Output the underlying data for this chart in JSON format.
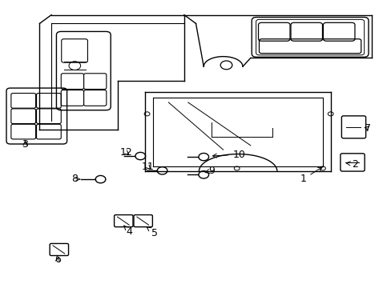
{
  "background_color": "#ffffff",
  "line_color": "#000000",
  "label_color": "#000000",
  "label_fontsize": 9
}
